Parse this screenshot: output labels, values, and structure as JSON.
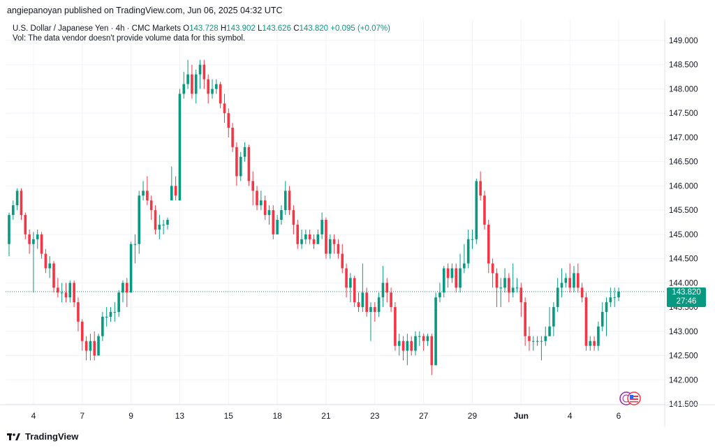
{
  "publisher_line": "angiepanoyan published on TradingView.com, Jun 06, 2025 04:32 UTC",
  "legend": {
    "symbol": "U.S. Dollar / Japanese Yen · 4h · CMC Markets",
    "o_label": "O",
    "o_value": "143.728",
    "h_label": "H",
    "h_value": "143.902",
    "l_label": "L",
    "l_value": "143.626",
    "c_label": "C",
    "c_value": "143.820",
    "change": "+0.095 (+0.07%)",
    "vol_note": "Vol: The data vendor doesn't provide volume data for this symbol."
  },
  "price_tag": {
    "price": "143.820",
    "countdown": "27:46"
  },
  "footer": {
    "brand": "TradingView"
  },
  "colors": {
    "up": "#089981",
    "down": "#F23645",
    "grid": "#F0F3FA",
    "axis_text": "#131722"
  },
  "chart_data": {
    "type": "candlestick",
    "y_axis": {
      "min": 141.5,
      "max": 149.0,
      "ticks": [
        "141.500",
        "142.000",
        "142.500",
        "143.000",
        "143.500",
        "144.000",
        "144.500",
        "145.000",
        "145.500",
        "146.000",
        "146.500",
        "147.000",
        "147.500",
        "148.000",
        "148.500",
        "149.000"
      ]
    },
    "x_axis": {
      "ticks": [
        {
          "label": "4",
          "bar": 6
        },
        {
          "label": "7",
          "bar": 18
        },
        {
          "label": "9",
          "bar": 30
        },
        {
          "label": "13",
          "bar": 42
        },
        {
          "label": "15",
          "bar": 54
        },
        {
          "label": "18",
          "bar": 66
        },
        {
          "label": "21",
          "bar": 78
        },
        {
          "label": "23",
          "bar": 90
        },
        {
          "label": "27",
          "bar": 102
        },
        {
          "label": "29",
          "bar": 114
        },
        {
          "label": "Jun",
          "bar": 126
        },
        {
          "label": "4",
          "bar": 138
        },
        {
          "label": "6",
          "bar": 150
        }
      ]
    },
    "last_price": 143.82,
    "candles": [
      [
        144.8,
        145.4,
        145.45,
        144.55
      ],
      [
        145.4,
        145.6,
        145.7,
        145.3
      ],
      [
        145.6,
        145.9,
        145.95,
        145.5
      ],
      [
        145.9,
        145.4,
        145.95,
        145.3
      ],
      [
        145.4,
        145.0,
        145.45,
        144.9
      ],
      [
        145.0,
        144.8,
        145.1,
        144.6
      ],
      [
        144.8,
        144.9,
        145.05,
        143.8
      ],
      [
        144.9,
        145.0,
        145.1,
        144.7
      ],
      [
        145.0,
        144.6,
        145.05,
        144.5
      ],
      [
        144.6,
        144.3,
        144.7,
        144.2
      ],
      [
        144.3,
        144.4,
        144.55,
        144.1
      ],
      [
        144.4,
        143.9,
        144.45,
        143.8
      ],
      [
        143.9,
        143.8,
        144.1,
        143.7
      ],
      [
        143.8,
        143.8,
        144.0,
        143.6
      ],
      [
        143.8,
        143.7,
        144.0,
        143.6
      ],
      [
        143.7,
        144.0,
        144.05,
        143.6
      ],
      [
        144.0,
        143.6,
        144.05,
        143.5
      ],
      [
        143.6,
        143.2,
        143.7,
        143.0
      ],
      [
        143.2,
        142.8,
        143.25,
        142.6
      ],
      [
        142.8,
        142.6,
        142.9,
        142.4
      ],
      [
        142.6,
        142.8,
        142.95,
        142.4
      ],
      [
        142.8,
        142.5,
        143.0,
        142.4
      ],
      [
        142.5,
        142.9,
        142.95,
        142.5
      ],
      [
        142.9,
        143.3,
        143.4,
        142.8
      ],
      [
        143.3,
        143.3,
        143.5,
        143.1
      ],
      [
        143.3,
        143.4,
        143.5,
        143.2
      ],
      [
        143.4,
        143.4,
        143.6,
        143.2
      ],
      [
        143.4,
        143.8,
        143.85,
        143.3
      ],
      [
        143.8,
        144.0,
        144.05,
        143.6
      ],
      [
        144.0,
        143.8,
        144.1,
        143.5
      ],
      [
        143.8,
        144.8,
        144.85,
        143.8
      ],
      [
        144.8,
        144.8,
        145.0,
        144.4
      ],
      [
        144.8,
        145.8,
        145.9,
        144.6
      ],
      [
        145.8,
        145.9,
        146.1,
        145.7
      ],
      [
        145.9,
        145.7,
        146.2,
        145.6
      ],
      [
        145.7,
        145.5,
        145.8,
        145.3
      ],
      [
        145.5,
        145.1,
        145.6,
        145.0
      ],
      [
        145.1,
        145.2,
        145.4,
        144.9
      ],
      [
        145.2,
        145.2,
        145.3,
        145.0
      ],
      [
        145.2,
        145.3,
        145.35,
        145.1
      ],
      [
        145.7,
        146.0,
        146.4,
        145.9
      ],
      [
        146.0,
        145.8,
        146.2,
        145.7
      ],
      [
        145.7,
        147.9,
        148.0,
        145.7
      ],
      [
        147.9,
        148.1,
        148.35,
        147.8
      ],
      [
        148.1,
        148.3,
        148.6,
        148.0
      ],
      [
        148.3,
        147.9,
        148.5,
        147.8
      ],
      [
        147.9,
        148.3,
        148.4,
        147.7
      ],
      [
        148.3,
        148.5,
        148.6,
        148.0
      ],
      [
        148.5,
        148.2,
        148.6,
        148.0
      ],
      [
        148.2,
        147.9,
        148.3,
        147.7
      ],
      [
        147.9,
        148.0,
        148.2,
        147.8
      ],
      [
        148.0,
        148.1,
        148.2,
        147.9
      ],
      [
        148.1,
        147.7,
        148.15,
        147.6
      ],
      [
        147.7,
        147.5,
        147.9,
        147.3
      ],
      [
        147.5,
        147.2,
        147.6,
        147.0
      ],
      [
        147.2,
        146.8,
        147.3,
        146.7
      ],
      [
        146.8,
        146.2,
        146.9,
        146.0
      ],
      [
        146.2,
        146.6,
        146.7,
        146.1
      ],
      [
        146.6,
        146.8,
        146.9,
        146.5
      ],
      [
        146.8,
        146.1,
        146.85,
        146.0
      ],
      [
        146.1,
        145.9,
        146.3,
        145.6
      ],
      [
        145.9,
        145.6,
        146.0,
        145.5
      ],
      [
        145.6,
        145.7,
        145.9,
        145.5
      ],
      [
        145.7,
        145.4,
        145.8,
        145.3
      ],
      [
        145.4,
        145.5,
        145.6,
        145.2
      ],
      [
        145.5,
        145.0,
        145.6,
        144.9
      ],
      [
        145.0,
        145.3,
        145.4,
        145.0
      ],
      [
        145.3,
        145.5,
        145.6,
        145.2
      ],
      [
        145.5,
        145.9,
        146.1,
        145.4
      ],
      [
        145.9,
        145.5,
        146.0,
        145.4
      ],
      [
        145.5,
        145.2,
        145.6,
        145.0
      ],
      [
        145.2,
        144.8,
        145.3,
        144.7
      ],
      [
        144.8,
        144.9,
        145.1,
        144.7
      ],
      [
        144.9,
        145.0,
        145.1,
        144.8
      ],
      [
        145.0,
        144.9,
        145.1,
        144.8
      ],
      [
        144.9,
        144.8,
        145.0,
        144.7
      ],
      [
        144.8,
        145.0,
        145.1,
        144.8
      ],
      [
        145.0,
        145.3,
        145.45,
        144.9
      ],
      [
        145.3,
        144.6,
        145.35,
        144.5
      ],
      [
        144.6,
        144.9,
        145.0,
        144.5
      ],
      [
        144.9,
        144.8,
        145.0,
        144.6
      ],
      [
        144.8,
        144.6,
        144.9,
        144.5
      ],
      [
        144.6,
        144.3,
        144.8,
        144.2
      ],
      [
        144.3,
        143.9,
        144.4,
        143.7
      ],
      [
        143.9,
        144.1,
        144.2,
        143.6
      ],
      [
        144.1,
        143.6,
        144.15,
        143.5
      ],
      [
        143.6,
        143.5,
        143.8,
        143.4
      ],
      [
        143.5,
        143.8,
        144.4,
        143.4
      ],
      [
        143.8,
        143.4,
        143.9,
        143.3
      ],
      [
        143.4,
        143.5,
        143.6,
        142.8
      ],
      [
        143.5,
        143.4,
        143.6,
        143.2
      ],
      [
        143.4,
        143.7,
        143.8,
        143.3
      ],
      [
        143.7,
        144.0,
        144.35,
        143.5
      ],
      [
        144.0,
        143.8,
        144.1,
        143.6
      ],
      [
        143.8,
        143.5,
        143.9,
        143.4
      ],
      [
        143.5,
        142.7,
        143.6,
        142.6
      ],
      [
        142.7,
        142.8,
        142.95,
        142.5
      ],
      [
        142.8,
        142.6,
        142.9,
        142.4
      ],
      [
        142.6,
        142.8,
        142.95,
        142.3
      ],
      [
        142.8,
        142.6,
        142.9,
        142.5
      ],
      [
        142.6,
        142.9,
        143.0,
        142.5
      ],
      [
        142.9,
        142.9,
        143.0,
        142.7
      ],
      [
        142.9,
        142.8,
        142.95,
        142.6
      ],
      [
        142.8,
        142.9,
        142.95,
        142.7
      ],
      [
        142.9,
        142.3,
        142.95,
        142.1
      ],
      [
        142.3,
        143.7,
        143.8,
        142.3
      ],
      [
        143.7,
        143.8,
        144.0,
        143.6
      ],
      [
        143.8,
        144.3,
        144.35,
        143.7
      ],
      [
        144.3,
        144.1,
        144.4,
        143.9
      ],
      [
        144.1,
        144.3,
        144.4,
        144.0
      ],
      [
        144.3,
        143.9,
        144.4,
        143.8
      ],
      [
        143.9,
        144.3,
        144.6,
        143.8
      ],
      [
        144.3,
        144.4,
        144.8,
        144.2
      ],
      [
        144.4,
        144.9,
        145.1,
        144.3
      ],
      [
        144.9,
        144.9,
        145.1,
        144.7
      ],
      [
        144.9,
        146.1,
        146.15,
        144.8
      ],
      [
        146.1,
        145.8,
        146.3,
        145.7
      ],
      [
        145.8,
        145.2,
        145.9,
        145.1
      ],
      [
        145.2,
        144.4,
        145.3,
        144.2
      ],
      [
        144.4,
        144.2,
        144.5,
        143.9
      ],
      [
        144.2,
        143.9,
        144.3,
        143.5
      ],
      [
        143.9,
        143.9,
        144.1,
        143.5
      ],
      [
        143.9,
        144.1,
        144.3,
        143.8
      ],
      [
        144.1,
        143.8,
        144.2,
        143.6
      ],
      [
        143.8,
        143.9,
        144.4,
        143.7
      ],
      [
        143.9,
        143.9,
        144.1,
        143.8
      ],
      [
        143.9,
        143.6,
        144.0,
        143.3
      ],
      [
        143.6,
        142.9,
        143.7,
        142.7
      ],
      [
        142.9,
        142.8,
        143.1,
        142.6
      ],
      [
        142.8,
        142.8,
        142.9,
        142.6
      ],
      [
        142.8,
        142.8,
        142.9,
        142.7
      ],
      [
        142.8,
        142.8,
        142.9,
        142.4
      ],
      [
        142.8,
        142.9,
        143.1,
        142.7
      ],
      [
        142.9,
        143.1,
        143.5,
        142.9
      ],
      [
        143.1,
        143.5,
        143.6,
        142.9
      ],
      [
        143.5,
        143.9,
        144.1,
        143.4
      ],
      [
        143.9,
        144.0,
        144.3,
        143.7
      ],
      [
        144.0,
        144.1,
        144.2,
        143.9
      ],
      [
        144.1,
        143.9,
        144.4,
        143.8
      ],
      [
        143.9,
        144.2,
        144.35,
        143.8
      ],
      [
        144.2,
        143.9,
        144.4,
        143.8
      ],
      [
        143.9,
        143.7,
        144.0,
        143.6
      ],
      [
        143.7,
        142.7,
        143.8,
        142.6
      ],
      [
        142.7,
        142.8,
        142.9,
        142.6
      ],
      [
        142.8,
        142.7,
        142.9,
        142.6
      ],
      [
        142.7,
        143.1,
        143.2,
        142.6
      ],
      [
        143.1,
        143.4,
        143.6,
        143.0
      ],
      [
        143.4,
        143.6,
        143.7,
        142.9
      ],
      [
        143.6,
        143.7,
        143.9,
        143.5
      ],
      [
        143.7,
        143.7,
        143.9,
        143.5
      ],
      [
        143.7,
        143.82,
        143.902,
        143.626
      ]
    ]
  }
}
